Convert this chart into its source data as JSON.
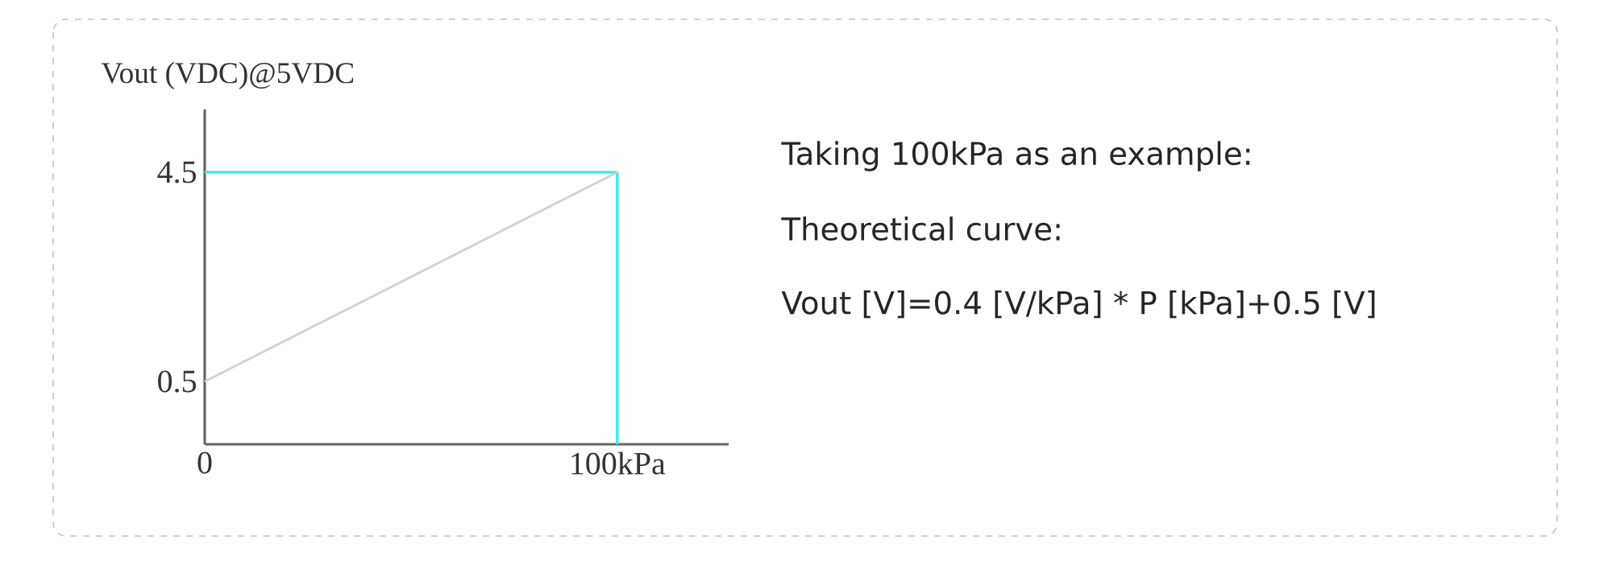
{
  "chart_data": {
    "type": "line",
    "ylabel": "Vout (VDC)@5VDC",
    "x": [
      0,
      100
    ],
    "values": [
      0.5,
      4.5
    ],
    "color": "#d0d0d0",
    "xlim": [
      0,
      127
    ],
    "ylim": [
      -0.7,
      5.7
    ],
    "xticks": [
      0,
      {
        "value": 100,
        "label": "100kPa"
      }
    ],
    "yticks": [
      0.5,
      4.5
    ],
    "ref_lines": [
      {
        "axis": "y",
        "value": 4.5,
        "color": "#40e8f0"
      },
      {
        "axis": "x",
        "value": 100,
        "color": "#40e8f0"
      }
    ],
    "annotations": [
      "Taking 100kPa as an example:",
      "Theoretical curve:",
      "Vout [V]=0.4 [V/kPa] * P [kPa]+0.5 [V]"
    ]
  }
}
